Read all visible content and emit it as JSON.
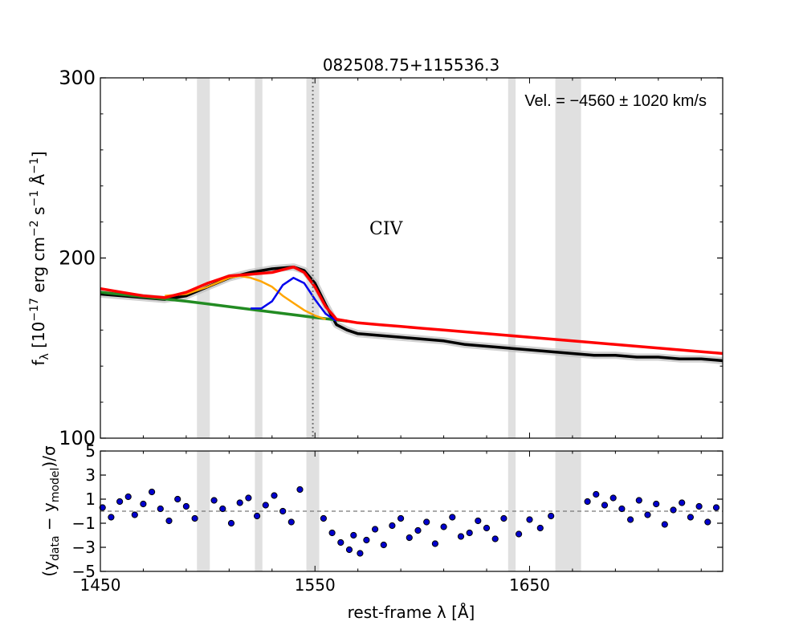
{
  "chart_data": [
    {
      "type": "line",
      "title": "082508.75+115536.3",
      "xlabel": "",
      "ylabel": "fλ [10⁻¹⁷ erg cm⁻² s⁻¹ Å⁻¹]",
      "ylabel_parts": {
        "a": "f",
        "a_sub": "λ",
        "b": " [10",
        "b_sup": "−17",
        "c": " erg cm",
        "c_sup": "−2",
        "d": " s",
        "d_sup": "−1",
        "e": " Å",
        "e_sup": "−1",
        "f": "]"
      },
      "xlim": [
        1450,
        1740
      ],
      "ylim": [
        100,
        300
      ],
      "yticks": [
        100,
        200,
        300
      ],
      "ytick_labels": [
        "100",
        "200",
        "300"
      ],
      "line_label": "CIV",
      "line_center": 1549,
      "velocity_text": "Vel. = −4560 ± 1020 km/s",
      "masked_regions": [
        [
          1495,
          1501
        ],
        [
          1522,
          1525.5
        ],
        [
          1546,
          1552
        ],
        [
          1640,
          1643.5
        ],
        [
          1662,
          1674
        ]
      ],
      "colors": {
        "data": "#000000",
        "error": "#bdbdbd",
        "total": "#ff0000",
        "continuum": "#228b22",
        "narrow": "#0000ee",
        "broad": "#ffa500",
        "mask": "#e0e0e0"
      },
      "series": [
        {
          "name": "data",
          "x": [
            1450,
            1460,
            1470,
            1480,
            1490,
            1500,
            1510,
            1520,
            1530,
            1540,
            1545,
            1550,
            1555,
            1560,
            1565,
            1570,
            1580,
            1590,
            1600,
            1610,
            1620,
            1630,
            1640,
            1650,
            1660,
            1670,
            1680,
            1690,
            1700,
            1710,
            1720,
            1730,
            1740
          ],
          "y": [
            180,
            179,
            178,
            177,
            179,
            184,
            189,
            192,
            194,
            195,
            193,
            186,
            174,
            163,
            160,
            158,
            157,
            156,
            155,
            154,
            152,
            151,
            150,
            149,
            148,
            147,
            146,
            146,
            145,
            145,
            144,
            144,
            143
          ]
        },
        {
          "name": "total model",
          "x": [
            1450,
            1460,
            1470,
            1480,
            1490,
            1500,
            1510,
            1520,
            1530,
            1540,
            1545,
            1550,
            1555,
            1560,
            1565,
            1570,
            1580,
            1590,
            1600,
            1610,
            1620,
            1630,
            1640,
            1650,
            1660,
            1670,
            1680,
            1690,
            1700,
            1710,
            1720,
            1730,
            1740
          ],
          "y": [
            183,
            181,
            179,
            178,
            181,
            186,
            190,
            191,
            192,
            195,
            192,
            184,
            173,
            166,
            165,
            164,
            163,
            162,
            161,
            160,
            159,
            158,
            157,
            156,
            155,
            154,
            153,
            152,
            151,
            150,
            149,
            148,
            147
          ]
        },
        {
          "name": "continuum",
          "x": [
            1450,
            1490,
            1510,
            1530,
            1550,
            1565
          ],
          "y": [
            181,
            176,
            173,
            170,
            167,
            165
          ]
        },
        {
          "name": "narrow component",
          "x": [
            1520,
            1525,
            1530,
            1535,
            1540,
            1545,
            1550,
            1555,
            1560
          ],
          "y": [
            172,
            172,
            176,
            185,
            189,
            186,
            177,
            169,
            165
          ]
        },
        {
          "name": "broad component",
          "x": [
            1480,
            1490,
            1500,
            1510,
            1515,
            1520,
            1525,
            1530,
            1535,
            1540,
            1545,
            1550,
            1555
          ],
          "y": [
            179,
            180,
            184,
            189,
            190,
            189,
            187,
            184,
            179,
            175,
            171,
            168,
            166
          ]
        }
      ]
    },
    {
      "type": "scatter",
      "xlabel": "rest-frame λ [Å]",
      "ylabel": "(ydata − ymodel)/σ",
      "ylabel_parts": {
        "a": "(y",
        "a_sub": "data",
        "b": " − y",
        "b_sub": "model",
        "c": ")/σ"
      },
      "xlim": [
        1450,
        1740
      ],
      "ylim": [
        -5,
        5
      ],
      "yticks": [
        -5,
        -3,
        -1,
        1,
        3,
        5
      ],
      "ytick_labels": [
        "−5",
        "−3",
        "−1",
        "1",
        "3",
        "5"
      ],
      "xticks": [
        1450,
        1550,
        1650
      ],
      "xtick_labels": [
        "1450",
        "1550",
        "1650"
      ],
      "reference_line": 0,
      "point_color": "#0000cd",
      "series": [
        {
          "name": "residuals",
          "x": [
            1451,
            1455,
            1459,
            1463,
            1466,
            1470,
            1474,
            1478,
            1482,
            1486,
            1490,
            1494,
            1503,
            1507,
            1511,
            1515,
            1519,
            1523,
            1527,
            1531,
            1535,
            1539,
            1543,
            1554,
            1558,
            1562,
            1566,
            1568,
            1571,
            1574,
            1578,
            1582,
            1586,
            1590,
            1594,
            1598,
            1602,
            1606,
            1610,
            1614,
            1618,
            1622,
            1626,
            1630,
            1634,
            1638,
            1645,
            1650,
            1655,
            1660,
            1677,
            1681,
            1685,
            1689,
            1693,
            1697,
            1701,
            1705,
            1709,
            1713,
            1717,
            1721,
            1725,
            1729,
            1733,
            1737
          ],
          "y": [
            0.3,
            -0.5,
            0.8,
            1.2,
            -0.3,
            0.6,
            1.6,
            0.2,
            -0.8,
            1.0,
            0.4,
            -0.6,
            0.9,
            0.2,
            -1.0,
            0.7,
            1.1,
            -0.4,
            0.5,
            1.3,
            0.0,
            -0.9,
            1.8,
            -0.6,
            -1.8,
            -2.6,
            -3.2,
            -2.0,
            -3.5,
            -2.4,
            -1.5,
            -2.8,
            -1.2,
            -0.6,
            -2.2,
            -1.6,
            -0.9,
            -2.7,
            -1.3,
            -0.5,
            -2.1,
            -1.8,
            -0.8,
            -1.4,
            -2.3,
            -0.6,
            -1.9,
            -0.7,
            -1.4,
            -0.4,
            0.8,
            1.4,
            0.5,
            1.1,
            0.2,
            -0.7,
            0.9,
            -0.3,
            0.6,
            -1.1,
            0.1,
            0.7,
            -0.5,
            0.4,
            -0.9,
            0.3
          ]
        }
      ]
    }
  ]
}
